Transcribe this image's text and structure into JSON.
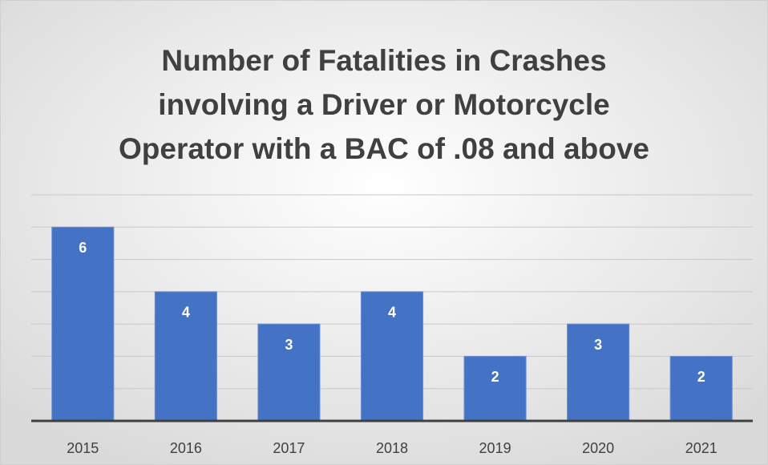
{
  "chart_data": {
    "type": "bar",
    "title": [
      "Number of Fatalities in Crashes",
      "involving a Driver or Motorcycle",
      "Operator with a BAC of .08 and above"
    ],
    "categories": [
      "2015",
      "2016",
      "2017",
      "2018",
      "2019",
      "2020",
      "2021"
    ],
    "values": [
      6,
      4,
      3,
      4,
      2,
      3,
      2
    ],
    "color": "#4472c4",
    "ylim": [
      0,
      7
    ],
    "yticks": [
      1,
      2,
      3,
      4,
      5,
      6,
      7
    ],
    "grid": true
  }
}
